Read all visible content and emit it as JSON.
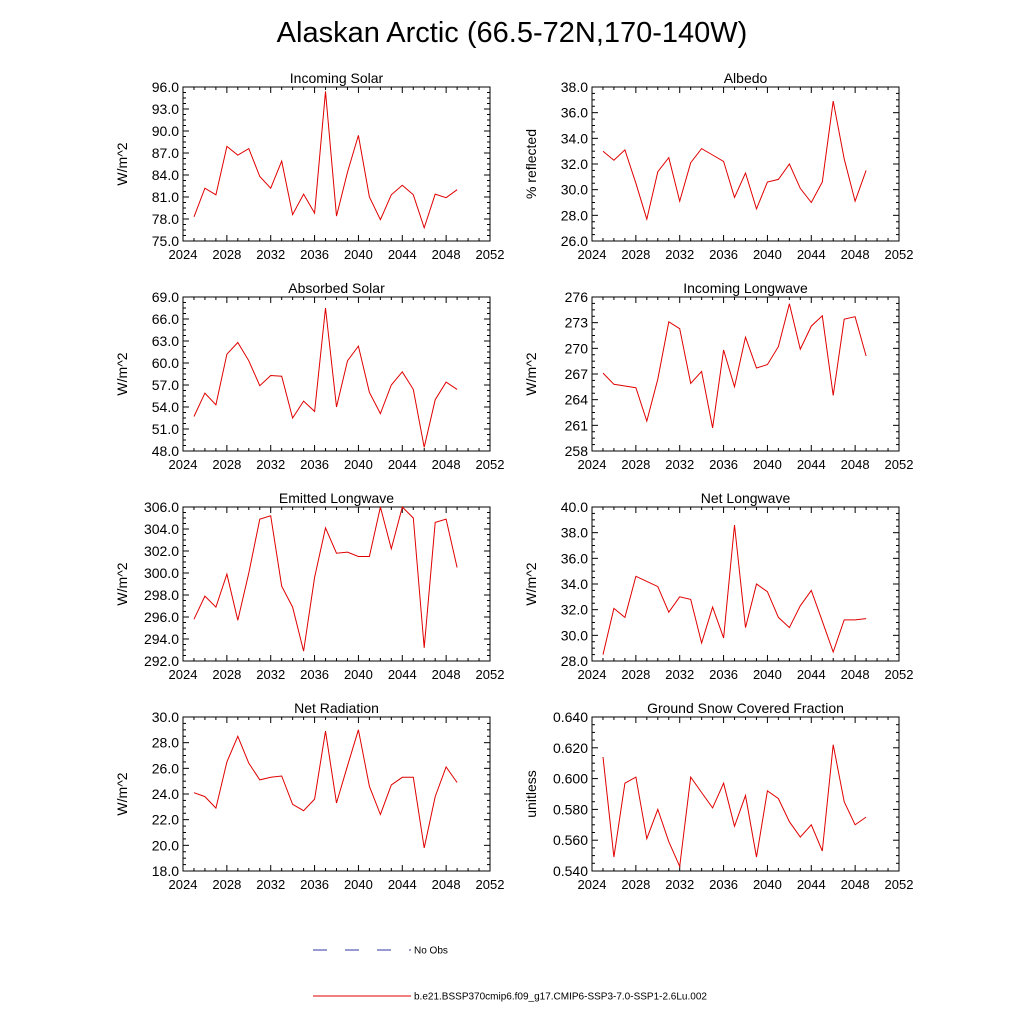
{
  "figure": {
    "title": "Alaskan Arctic (66.5-72N,170-140W)"
  },
  "legend": {
    "entries": [
      {
        "label": "No Obs",
        "color": "#3333aa",
        "style": "dashed"
      },
      {
        "label": "b.e21.BSSP370cmip6.f09_g17.CMIP6-SSP3-7.0-SSP1-2.6Lu.002",
        "color": "#e00000",
        "style": "solid"
      }
    ]
  },
  "chart_data": [
    {
      "type": "line",
      "title": "Incoming Solar",
      "xlabel": "",
      "ylabel": "W/m^2",
      "xlim": [
        2024,
        2052
      ],
      "xticks": [
        2024,
        2028,
        2032,
        2036,
        2040,
        2044,
        2048,
        2052
      ],
      "xtick_labels": [
        "2024",
        "2028",
        "2032",
        "2036",
        "2040",
        "2044",
        "2048",
        "2052"
      ],
      "ylim": [
        75,
        96
      ],
      "yticks": [
        75,
        78,
        81,
        84,
        87,
        90,
        93,
        96
      ],
      "ytick_labels": [
        "75.0",
        "78.0",
        "81.0",
        "84.0",
        "87.0",
        "90.0",
        "93.0",
        "96.0"
      ],
      "series": [
        {
          "color": "#e00000",
          "x": [
            2025,
            2026,
            2027,
            2028,
            2029,
            2030,
            2031,
            2032,
            2033,
            2034,
            2035,
            2036,
            2037,
            2038,
            2039,
            2040,
            2041,
            2042,
            2043,
            2044,
            2045,
            2046,
            2047,
            2048,
            2049
          ],
          "y": [
            78.3,
            82.2,
            81.3,
            87.9,
            86.7,
            87.6,
            83.8,
            82.2,
            85.9,
            78.6,
            81.4,
            78.8,
            95.4,
            78.4,
            84.4,
            89.4,
            81.0,
            77.9,
            81.3,
            82.6,
            81.3,
            76.8,
            81.4,
            80.9,
            82.0
          ]
        }
      ]
    },
    {
      "type": "line",
      "title": "Albedo",
      "xlabel": "",
      "ylabel": "% reflected",
      "xlim": [
        2024,
        2052
      ],
      "xticks": [
        2024,
        2028,
        2032,
        2036,
        2040,
        2044,
        2048,
        2052
      ],
      "xtick_labels": [
        "2024",
        "2028",
        "2032",
        "2036",
        "2040",
        "2044",
        "2048",
        "2052"
      ],
      "ylim": [
        26,
        38
      ],
      "yticks": [
        26,
        28,
        30,
        32,
        34,
        36,
        38
      ],
      "ytick_labels": [
        "26.0",
        "28.0",
        "30.0",
        "32.0",
        "34.0",
        "36.0",
        "38.0"
      ],
      "series": [
        {
          "color": "#e00000",
          "x": [
            2025,
            2026,
            2027,
            2028,
            2029,
            2030,
            2031,
            2032,
            2033,
            2034,
            2035,
            2036,
            2037,
            2038,
            2039,
            2040,
            2041,
            2042,
            2043,
            2044,
            2045,
            2046,
            2047,
            2048,
            2049
          ],
          "y": [
            33.0,
            32.3,
            33.1,
            30.5,
            27.7,
            31.4,
            32.5,
            29.1,
            32.1,
            33.2,
            32.7,
            32.2,
            29.4,
            31.3,
            28.5,
            30.6,
            30.8,
            32.0,
            30.1,
            29.0,
            30.6,
            36.9,
            32.4,
            29.1,
            31.5
          ]
        }
      ]
    },
    {
      "type": "line",
      "title": "Absorbed Solar",
      "xlabel": "",
      "ylabel": "W/m^2",
      "xlim": [
        2024,
        2052
      ],
      "xticks": [
        2024,
        2028,
        2032,
        2036,
        2040,
        2044,
        2048,
        2052
      ],
      "xtick_labels": [
        "2024",
        "2028",
        "2032",
        "2036",
        "2040",
        "2044",
        "2048",
        "2052"
      ],
      "ylim": [
        48,
        69
      ],
      "yticks": [
        48,
        51,
        54,
        57,
        60,
        63,
        66,
        69
      ],
      "ytick_labels": [
        "48.0",
        "51.0",
        "54.0",
        "57.0",
        "60.0",
        "63.0",
        "66.0",
        "69.0"
      ],
      "series": [
        {
          "color": "#e00000",
          "x": [
            2025,
            2026,
            2027,
            2028,
            2029,
            2030,
            2031,
            2032,
            2033,
            2034,
            2035,
            2036,
            2037,
            2038,
            2039,
            2040,
            2041,
            2042,
            2043,
            2044,
            2045,
            2046,
            2047,
            2048,
            2049
          ],
          "y": [
            52.7,
            55.9,
            54.3,
            61.2,
            62.8,
            60.3,
            56.9,
            58.3,
            58.2,
            52.5,
            54.8,
            53.4,
            67.5,
            54.0,
            60.3,
            62.3,
            56.0,
            53.1,
            57.0,
            58.8,
            56.4,
            48.5,
            55.0,
            57.4,
            56.4
          ]
        }
      ]
    },
    {
      "type": "line",
      "title": "Incoming Longwave",
      "xlabel": "",
      "ylabel": "W/m^2",
      "xlim": [
        2024,
        2052
      ],
      "xticks": [
        2024,
        2028,
        2032,
        2036,
        2040,
        2044,
        2048,
        2052
      ],
      "xtick_labels": [
        "2024",
        "2028",
        "2032",
        "2036",
        "2040",
        "2044",
        "2048",
        "2052"
      ],
      "ylim": [
        258,
        276
      ],
      "yticks": [
        258,
        261,
        264,
        267,
        270,
        273,
        276
      ],
      "ytick_labels": [
        "258",
        "261",
        "264",
        "267",
        "270",
        "273",
        "276"
      ],
      "series": [
        {
          "color": "#e00000",
          "x": [
            2025,
            2026,
            2027,
            2028,
            2029,
            2030,
            2031,
            2032,
            2033,
            2034,
            2035,
            2036,
            2037,
            2038,
            2039,
            2040,
            2041,
            2042,
            2043,
            2044,
            2045,
            2046,
            2047,
            2048,
            2049
          ],
          "y": [
            267.1,
            265.8,
            265.6,
            265.4,
            261.5,
            266.4,
            273.1,
            272.3,
            265.9,
            267.3,
            260.7,
            269.8,
            265.5,
            271.3,
            267.7,
            268.1,
            270.2,
            275.2,
            269.9,
            272.6,
            273.8,
            264.5,
            273.4,
            273.7,
            269.1
          ]
        }
      ]
    },
    {
      "type": "line",
      "title": "Emitted Longwave",
      "xlabel": "",
      "ylabel": "W/m^2",
      "xlim": [
        2024,
        2052
      ],
      "xticks": [
        2024,
        2028,
        2032,
        2036,
        2040,
        2044,
        2048,
        2052
      ],
      "xtick_labels": [
        "2024",
        "2028",
        "2032",
        "2036",
        "2040",
        "2044",
        "2048",
        "2052"
      ],
      "ylim": [
        292,
        306
      ],
      "yticks": [
        292,
        294,
        296,
        298,
        300,
        302,
        304,
        306
      ],
      "ytick_labels": [
        "292.0",
        "294.0",
        "296.0",
        "298.0",
        "300.0",
        "302.0",
        "304.0",
        "306.0"
      ],
      "series": [
        {
          "color": "#e00000",
          "x": [
            2025,
            2026,
            2027,
            2028,
            2029,
            2030,
            2031,
            2032,
            2033,
            2034,
            2035,
            2036,
            2037,
            2038,
            2039,
            2040,
            2041,
            2042,
            2043,
            2044,
            2045,
            2046,
            2047,
            2048,
            2049
          ],
          "y": [
            295.8,
            297.9,
            296.9,
            299.9,
            295.7,
            300.0,
            304.9,
            305.2,
            298.8,
            296.9,
            292.9,
            299.6,
            304.1,
            301.8,
            301.9,
            301.5,
            301.5,
            306.0,
            302.2,
            306.0,
            305.0,
            293.2,
            304.6,
            304.9,
            300.5
          ]
        }
      ]
    },
    {
      "type": "line",
      "title": "Net Longwave",
      "xlabel": "",
      "ylabel": "W/m^2",
      "xlim": [
        2024,
        2052
      ],
      "xticks": [
        2024,
        2028,
        2032,
        2036,
        2040,
        2044,
        2048,
        2052
      ],
      "xtick_labels": [
        "2024",
        "2028",
        "2032",
        "2036",
        "2040",
        "2044",
        "2048",
        "2052"
      ],
      "ylim": [
        28,
        40
      ],
      "yticks": [
        28,
        30,
        32,
        34,
        36,
        38,
        40
      ],
      "ytick_labels": [
        "28.0",
        "30.0",
        "32.0",
        "34.0",
        "36.0",
        "38.0",
        "40.0"
      ],
      "series": [
        {
          "color": "#e00000",
          "x": [
            2025,
            2026,
            2027,
            2028,
            2029,
            2030,
            2031,
            2032,
            2033,
            2034,
            2035,
            2036,
            2037,
            2038,
            2039,
            2040,
            2041,
            2042,
            2043,
            2044,
            2045,
            2046,
            2047,
            2048,
            2049
          ],
          "y": [
            28.5,
            32.1,
            31.4,
            34.6,
            34.2,
            33.8,
            31.8,
            33.0,
            32.8,
            29.4,
            32.2,
            29.8,
            38.6,
            30.6,
            34.0,
            33.4,
            31.4,
            30.6,
            32.3,
            33.5,
            31.1,
            28.7,
            31.2,
            31.2,
            31.3
          ]
        }
      ]
    },
    {
      "type": "line",
      "title": "Net Radiation",
      "xlabel": "",
      "ylabel": "W/m^2",
      "xlim": [
        2024,
        2052
      ],
      "xticks": [
        2024,
        2028,
        2032,
        2036,
        2040,
        2044,
        2048,
        2052
      ],
      "xtick_labels": [
        "2024",
        "2028",
        "2032",
        "2036",
        "2040",
        "2044",
        "2048",
        "2052"
      ],
      "ylim": [
        18,
        30
      ],
      "yticks": [
        18,
        20,
        22,
        24,
        26,
        28,
        30
      ],
      "ytick_labels": [
        "18.0",
        "20.0",
        "22.0",
        "24.0",
        "26.0",
        "28.0",
        "30.0"
      ],
      "series": [
        {
          "color": "#e00000",
          "x": [
            2025,
            2026,
            2027,
            2028,
            2029,
            2030,
            2031,
            2032,
            2033,
            2034,
            2035,
            2036,
            2037,
            2038,
            2039,
            2040,
            2041,
            2042,
            2043,
            2044,
            2045,
            2046,
            2047,
            2048,
            2049
          ],
          "y": [
            24.1,
            23.8,
            22.9,
            26.5,
            28.5,
            26.4,
            25.1,
            25.3,
            25.4,
            23.2,
            22.7,
            23.6,
            28.9,
            23.3,
            26.2,
            29.0,
            24.6,
            22.4,
            24.7,
            25.3,
            25.3,
            19.8,
            23.8,
            26.1,
            24.9
          ]
        }
      ]
    },
    {
      "type": "line",
      "title": "Ground Snow Covered Fraction",
      "xlabel": "",
      "ylabel": "unitless",
      "xlim": [
        2024,
        2052
      ],
      "xticks": [
        2024,
        2028,
        2032,
        2036,
        2040,
        2044,
        2048,
        2052
      ],
      "xtick_labels": [
        "2024",
        "2028",
        "2032",
        "2036",
        "2040",
        "2044",
        "2048",
        "2052"
      ],
      "ylim": [
        0.54,
        0.64
      ],
      "yticks": [
        0.54,
        0.56,
        0.58,
        0.6,
        0.62,
        0.64
      ],
      "ytick_labels": [
        "0.540",
        "0.560",
        "0.580",
        "0.600",
        "0.620",
        "0.640"
      ],
      "series": [
        {
          "color": "#e00000",
          "x": [
            2025,
            2026,
            2027,
            2028,
            2029,
            2030,
            2031,
            2032,
            2033,
            2034,
            2035,
            2036,
            2037,
            2038,
            2039,
            2040,
            2041,
            2042,
            2043,
            2044,
            2045,
            2046,
            2047,
            2048,
            2049
          ],
          "y": [
            0.614,
            0.549,
            0.597,
            0.601,
            0.561,
            0.58,
            0.559,
            0.543,
            0.601,
            0.591,
            0.581,
            0.597,
            0.569,
            0.589,
            0.549,
            0.592,
            0.587,
            0.572,
            0.562,
            0.57,
            0.553,
            0.622,
            0.585,
            0.57,
            0.575
          ]
        }
      ]
    }
  ]
}
